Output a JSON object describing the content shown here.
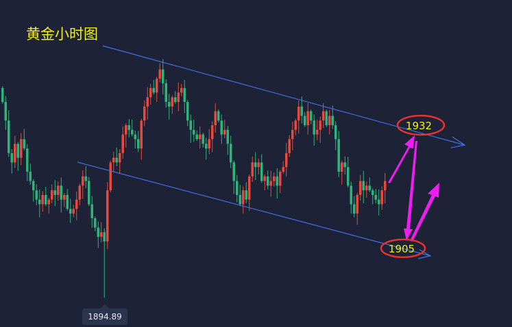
{
  "title": "黄金小时图",
  "chart_data": {
    "type": "candlestick",
    "title": "黄金小时图",
    "colors": {
      "up": "#e8493c",
      "down": "#2db47a",
      "channel": "#3d72e6",
      "ellipse": "#e8322f",
      "arrow": "#ee1ef0",
      "label": "#f2ee1c"
    },
    "first_open": 1940,
    "closes": [
      1937,
      1933,
      1926,
      1924,
      1928,
      1925,
      1929,
      1927,
      1922,
      1920,
      1918,
      1916,
      1915,
      1917,
      1915,
      1916,
      1918,
      1917,
      1919,
      1916,
      1917,
      1914,
      1913,
      1914,
      1916,
      1919,
      1921,
      1920,
      1915,
      1912,
      1910,
      1908,
      1909,
      1907,
      1918,
      1924,
      1925,
      1924,
      1926,
      1930,
      1932,
      1931,
      1930,
      1929,
      1927,
      1933,
      1936,
      1938,
      1940,
      1939,
      1942,
      1944,
      1941,
      1937,
      1936,
      1938,
      1937,
      1939,
      1940,
      1937,
      1933,
      1931,
      1930,
      1929,
      1930,
      1928,
      1927,
      1929,
      1932,
      1935,
      1933,
      1930,
      1931,
      1928,
      1924,
      1920,
      1917,
      1915,
      1918,
      1916,
      1921,
      1924,
      1923,
      1924,
      1920,
      1921,
      1919,
      1920,
      1921,
      1919,
      1922,
      1923,
      1926,
      1929,
      1931,
      1933,
      1936,
      1934,
      1932,
      1935,
      1933,
      1930,
      1931,
      1933,
      1935,
      1932,
      1934,
      1932,
      1929,
      1922,
      1924,
      1923,
      1919,
      1915,
      1913,
      1917,
      1920,
      1918,
      1919,
      1918,
      1917,
      1916,
      1915,
      1918,
      1920
    ],
    "marked_low": {
      "index": 33,
      "value": 1894.89,
      "label": "1894.89"
    },
    "channel": "descending",
    "targets": [
      {
        "label": "1932",
        "value": 1932
      },
      {
        "label": "1905",
        "value": 1905
      }
    ]
  }
}
